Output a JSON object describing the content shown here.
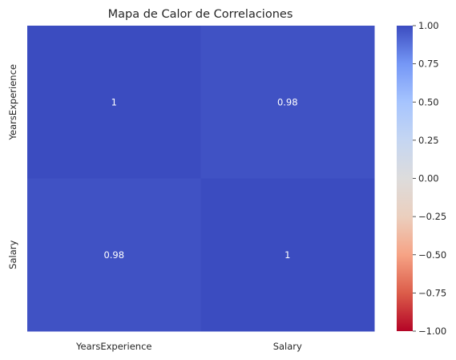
{
  "chart_data": {
    "type": "heatmap",
    "title": "Mapa de Calor de Correlaciones",
    "xlabel": "",
    "ylabel": "",
    "x_categories": [
      "YearsExperience",
      "Salary"
    ],
    "y_categories": [
      "YearsExperience",
      "Salary"
    ],
    "values": [
      [
        1.0,
        0.98
      ],
      [
        0.98,
        1.0
      ]
    ],
    "annotations": [
      [
        "1",
        "0.98"
      ],
      [
        "0.98",
        "1"
      ]
    ],
    "colormap": "coolwarm",
    "colorbar": {
      "vmin": -1.0,
      "vmax": 1.0,
      "ticks": [
        "1.00",
        "0.75",
        "0.50",
        "0.25",
        "0.00",
        "−0.25",
        "−0.50",
        "−0.75",
        "−1.00"
      ]
    },
    "grid": false,
    "colors": {
      "low": "#b40426",
      "mid": "#dddcdc",
      "high": "#3b4cc0"
    }
  }
}
